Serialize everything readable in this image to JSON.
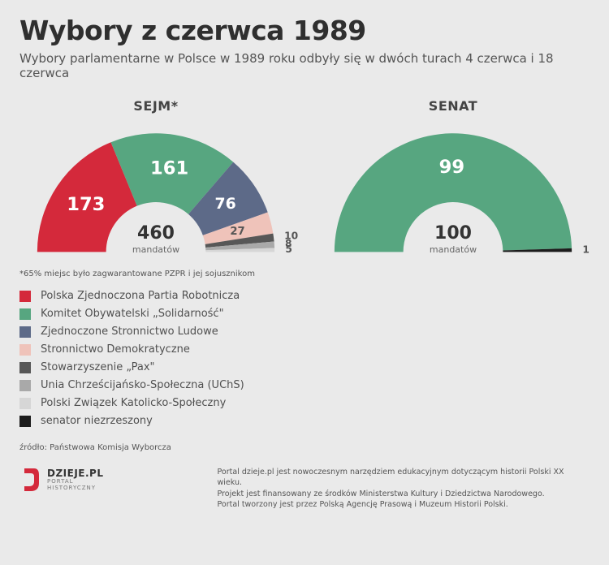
{
  "title": "Wybory z czerwca 1989",
  "subtitle": "Wybory parlamentarne w Polsce w 1989 roku odbyły się w dwóch turach 4 czerwca i 18 czerwca",
  "background_color": "#eaeaea",
  "sejm": {
    "title": "SEJM*",
    "total": "460",
    "unit": "mandatów",
    "type": "semicircle-donut",
    "inner_radius_ratio": 0.42,
    "slices": [
      {
        "value": 173,
        "label": "173",
        "color": "#d4293b",
        "label_color": "#ffffff",
        "label_fontsize": 24
      },
      {
        "value": 161,
        "label": "161",
        "color": "#57a680",
        "label_color": "#ffffff",
        "label_fontsize": 24
      },
      {
        "value": 76,
        "label": "76",
        "color": "#5d6a88",
        "label_color": "#ffffff",
        "label_fontsize": 20
      },
      {
        "value": 27,
        "label": "27",
        "color": "#efc3ba",
        "label_color": "#7a5c55",
        "label_fontsize": 14
      },
      {
        "value": 10,
        "label": "10",
        "color": "#575757",
        "label_color": "#555555",
        "label_fontsize": 13,
        "outside": true
      },
      {
        "value": 8,
        "label": "8",
        "color": "#a9a9a9",
        "label_color": "#555555",
        "label_fontsize": 13,
        "outside": true
      },
      {
        "value": 5,
        "label": "5",
        "color": "#d6d6d6",
        "label_color": "#555555",
        "label_fontsize": 13,
        "outside": true
      }
    ],
    "footnote": "*65% miejsc było zagwarantowane PZPR i jej sojusznikom"
  },
  "senat": {
    "title": "SENAT",
    "total": "100",
    "unit": "mandatów",
    "type": "semicircle-donut",
    "inner_radius_ratio": 0.42,
    "slices": [
      {
        "value": 99,
        "label": "99",
        "color": "#57a680",
        "label_color": "#ffffff",
        "label_fontsize": 24
      },
      {
        "value": 1,
        "label": "1",
        "color": "#1c1c1c",
        "label_color": "#555555",
        "label_fontsize": 13,
        "outside": true
      }
    ]
  },
  "legend": [
    {
      "color": "#d4293b",
      "label": "Polska Zjednoczona Partia Robotnicza"
    },
    {
      "color": "#57a680",
      "label": "Komitet Obywatelski „Solidarność\""
    },
    {
      "color": "#5d6a88",
      "label": "Zjednoczone Stronnictwo Ludowe"
    },
    {
      "color": "#efc3ba",
      "label": "Stronnictwo Demokratyczne"
    },
    {
      "color": "#575757",
      "label": "Stowarzyszenie „Pax\""
    },
    {
      "color": "#a9a9a9",
      "label": "Unia Chrześcijańsko-Społeczna (UChS)"
    },
    {
      "color": "#d6d6d6",
      "label": "Polski Związek Katolicko-Społeczny"
    },
    {
      "color": "#1c1c1c",
      "label": "senator niezrzeszony"
    }
  ],
  "source": "źródło: Państwowa Komisja Wyborcza",
  "logo": {
    "brand": "DZIEJE.PL",
    "sub1": "PORTAL",
    "sub2": "HISTORYCZNY",
    "accent": "#d4293b"
  },
  "footer_lines": [
    "Portal dzieje.pl jest nowoczesnym narzędziem edukacyjnym dotyczącym historii Polski XX wieku.",
    "Projekt jest finansowany ze środków Ministerstwa Kultury i Dziedzictwa Narodowego.",
    "Portal tworzony jest przez Polską Agencję Prasową i Muzeum Historii Polski."
  ]
}
